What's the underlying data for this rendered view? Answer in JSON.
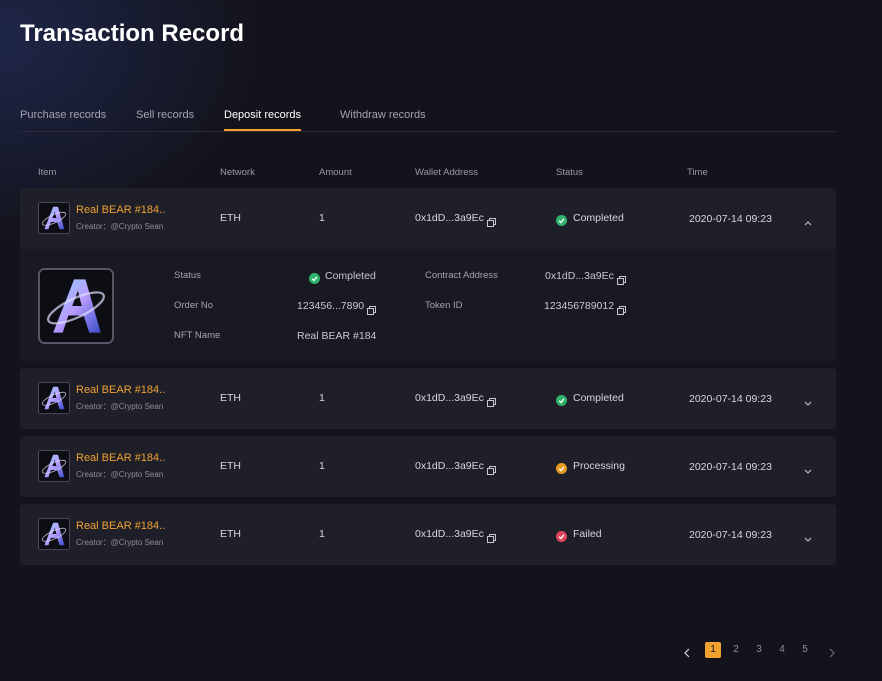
{
  "header": {
    "title": "Transaction Record"
  },
  "tabs": [
    {
      "label": "Purchase records",
      "active": false
    },
    {
      "label": "Sell records",
      "active": false
    },
    {
      "label": "Deposit records",
      "active": true
    },
    {
      "label": "Withdraw records",
      "active": false
    }
  ],
  "table": {
    "columns": [
      "Item",
      "Network",
      "Amount",
      "Wallet Address",
      "Status",
      "Time"
    ],
    "rows": [
      {
        "name": "Real BEAR #184..",
        "creator": "Creator：@Crypto Sean",
        "network": "ETH",
        "amount": 1,
        "wallet": "0x1dD...3a9Ec",
        "status": "Completed",
        "status_color": "#2fb36a",
        "time": "2020-07-14 09:23",
        "expanded": true,
        "details": [
          {
            "label": "Status",
            "value": "Completed",
            "icon_color": "#2fb36a"
          },
          {
            "label": "Contract Address",
            "value": "0x1dD...3a9Ec",
            "copyable": true
          },
          {
            "label": "Order No",
            "value": "123456...7890",
            "copyable": true
          },
          {
            "label": "Token ID",
            "value": "123456789012",
            "copyable": true
          },
          {
            "label": "NFT Name",
            "value": "Real BEAR #184"
          }
        ]
      },
      {
        "name": "Real BEAR #184..",
        "creator": "Creator：@Crypto Sean",
        "network": "ETH",
        "amount": 1,
        "wallet": "0x1dD...3a9Ec",
        "status": "Completed",
        "status_color": "#2fb36a",
        "time": "2020-07-14 09:23",
        "expanded": false
      },
      {
        "name": "Real BEAR #184..",
        "creator": "Creator：@Crypto Sean",
        "network": "ETH",
        "amount": 1,
        "wallet": "0x1dD...3a9Ec",
        "status": "Processing",
        "status_color": "#e89a1e",
        "time": "2020-07-14 09:23",
        "expanded": false
      },
      {
        "name": "Real BEAR #184..",
        "creator": "Creator：@Crypto Sean",
        "network": "ETH",
        "amount": 1,
        "wallet": "0x1dD...3a9Ec",
        "status": "Failed",
        "status_color": "#e0445a",
        "time": "2020-07-14 09:23",
        "expanded": false
      }
    ]
  },
  "pagination": {
    "pages": [
      1,
      2,
      3,
      4,
      5
    ],
    "current": 1
  }
}
